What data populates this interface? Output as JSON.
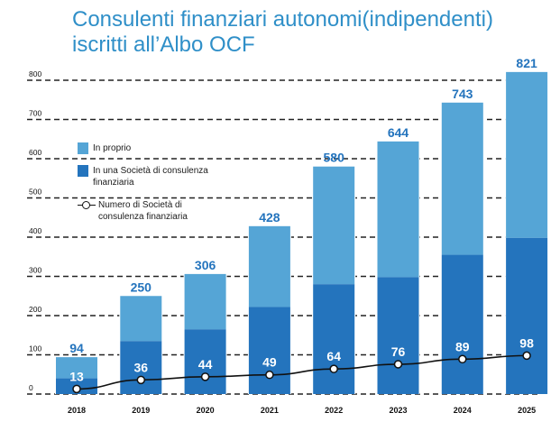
{
  "title_line1": "Consulenti finanziari autonomi(indipendenti)",
  "title_line2": "iscritti all’Albo OCF",
  "colors": {
    "title": "#2f8fc8",
    "in_proprio": "#55a5d6",
    "societa": "#2474bd",
    "value_label_top": "#2474bd",
    "value_label_inner": "#ffffff",
    "line": "#111111"
  },
  "legend": {
    "in_proprio": "In proprio",
    "societa": "In una Società di consulenza finanziaria",
    "numero_societa": "Numero di Società di consulenza finanziaria"
  },
  "chart_data": {
    "type": "bar",
    "stacked": true,
    "categories": [
      "2018",
      "2019",
      "2020",
      "2021",
      "2022",
      "2023",
      "2024",
      "2025"
    ],
    "series": [
      {
        "name": "In una Società di consulenza finanziaria",
        "values": [
          40,
          135,
          165,
          222,
          280,
          298,
          355,
          398
        ]
      },
      {
        "name": "In proprio",
        "values": [
          54,
          115,
          141,
          206,
          300,
          346,
          388,
          423
        ]
      }
    ],
    "totals": [
      94,
      250,
      306,
      428,
      580,
      644,
      743,
      821
    ],
    "line_series": {
      "name": "Numero di Società di consulenza finanziaria",
      "values": [
        13,
        36,
        44,
        49,
        64,
        76,
        89,
        98
      ]
    },
    "yticks": [
      "0",
      "100",
      "200",
      "300",
      "400",
      "500",
      "600",
      "700",
      "800"
    ],
    "ylim": [
      0,
      800
    ],
    "grid": "dashed horizontal",
    "legend_position": "left"
  }
}
